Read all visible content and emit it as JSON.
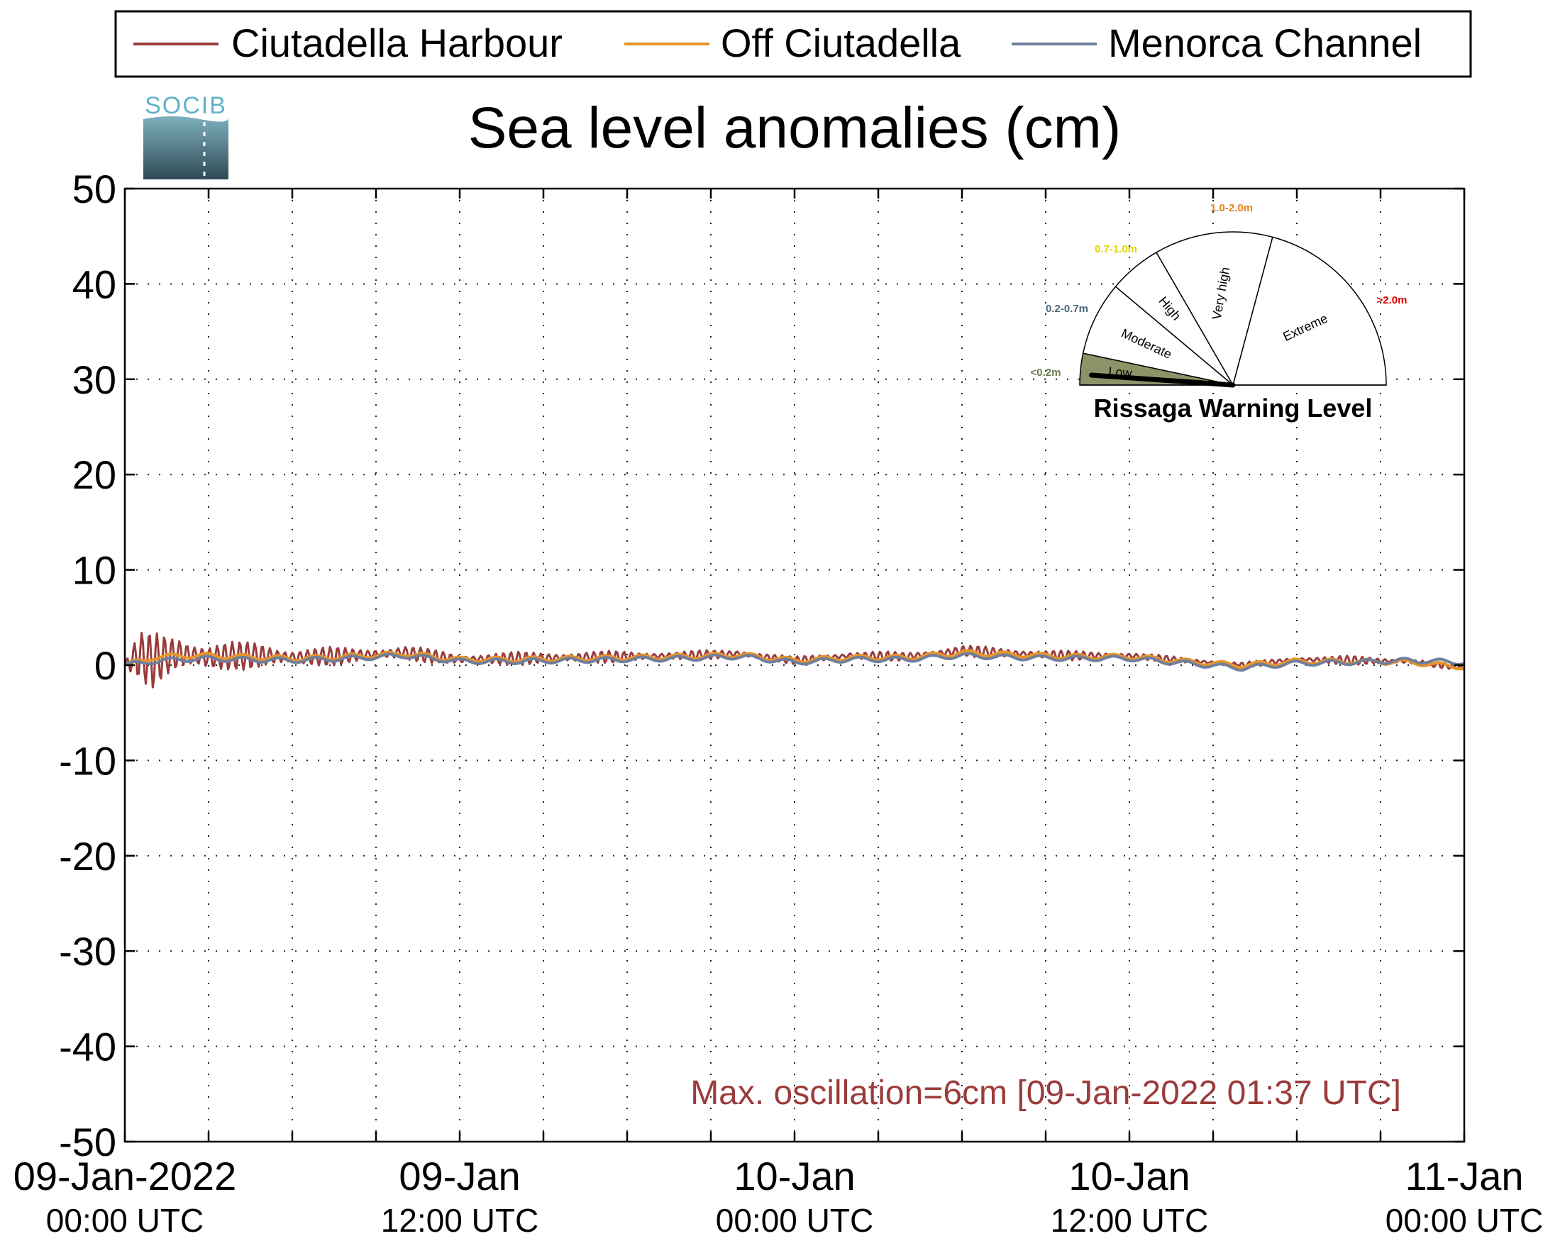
{
  "chart_data": {
    "type": "line",
    "title": "Sea level anomalies (cm)",
    "logo_text": "SOCIB",
    "ylim": [
      -50,
      50
    ],
    "yticks": [
      "50",
      "40",
      "30",
      "20",
      "10",
      "0",
      "-10",
      "-20",
      "-30",
      "-40",
      "-50"
    ],
    "xlim_hours": [
      0,
      48
    ],
    "xtick_labels": [
      {
        "line1": "09-Jan-2022",
        "line2": "00:00 UTC"
      },
      {
        "line1": "09-Jan",
        "line2": "12:00 UTC"
      },
      {
        "line1": "10-Jan",
        "line2": "00:00 UTC"
      },
      {
        "line1": "10-Jan",
        "line2": "12:00 UTC"
      },
      {
        "line1": "11-Jan",
        "line2": "00:00 UTC"
      }
    ],
    "grid": true,
    "legend_position": "top",
    "series": [
      {
        "name": "Ciutadella Harbour",
        "color": "#9b3b3b",
        "hours": [
          0,
          0.5,
          1,
          1.5,
          2,
          3,
          4,
          5,
          6,
          8,
          10,
          12,
          14,
          16,
          18,
          20,
          22,
          24,
          26,
          28,
          30,
          32,
          34,
          36,
          38,
          40,
          42,
          44,
          46,
          48
        ],
        "values": [
          0,
          1.0,
          0.5,
          1.0,
          1.2,
          0.8,
          1.0,
          1.0,
          0.8,
          1.0,
          1.3,
          0.6,
          0.7,
          0.8,
          0.9,
          1.0,
          1.2,
          0.5,
          1.0,
          0.9,
          1.5,
          1.2,
          1.0,
          1.0,
          0.5,
          0.0,
          0.6,
          0.5,
          0.4,
          -0.3
        ],
        "amplitude_cm": [
          0.5,
          2.5,
          3.0,
          2.5,
          2.5,
          1.8,
          1.5,
          1.5,
          1.2,
          0.9,
          0.8,
          0.7,
          0.7,
          0.7,
          0.6,
          0.5,
          0.5,
          0.4,
          0.5,
          0.5,
          0.6,
          0.6,
          0.5,
          0.4,
          0.3,
          0.3,
          0.3,
          0.5,
          0.3,
          0.3
        ]
      },
      {
        "name": "Off Ciutadella",
        "color": "#e8952a",
        "hours": [
          0,
          1,
          2,
          3,
          4,
          6,
          8,
          10,
          12,
          14,
          16,
          18,
          20,
          22,
          24,
          26,
          28,
          30,
          32,
          34,
          36,
          38,
          40,
          42,
          44,
          46,
          48
        ],
        "values": [
          0,
          0.8,
          1.0,
          1.0,
          0.9,
          0.7,
          0.9,
          1.2,
          0.6,
          0.6,
          0.7,
          0.8,
          0.9,
          1.1,
          0.5,
          0.8,
          0.8,
          1.3,
          1.1,
          0.9,
          0.9,
          0.4,
          0.0,
          0.4,
          0.4,
          0.3,
          -0.2
        ]
      },
      {
        "name": "Menorca Channel",
        "color": "#6f7f9e",
        "hours": [
          0,
          1,
          2,
          3,
          4,
          6,
          8,
          10,
          12,
          14,
          16,
          18,
          20,
          22,
          24,
          26,
          28,
          30,
          32,
          34,
          36,
          38,
          40,
          42,
          44,
          46,
          48
        ],
        "values": [
          0,
          0.4,
          0.6,
          0.7,
          0.6,
          0.5,
          0.7,
          1.0,
          0.4,
          0.4,
          0.5,
          0.6,
          0.7,
          0.9,
          0.3,
          0.6,
          0.6,
          1.0,
          0.8,
          0.7,
          0.7,
          0.2,
          -0.3,
          0.2,
          0.3,
          0.5,
          0.3
        ]
      }
    ],
    "annotation": "Max. oscillation=6cm [09-Jan-2022 01:37 UTC]",
    "annotation_color": "#9b3b3b",
    "gauge": {
      "title": "Rissaga Warning Level",
      "needle_level": "Low",
      "sectors": [
        {
          "label": "Low",
          "range": "<0.2m",
          "range_color": "#6b7a4a",
          "fill": "#8a9468"
        },
        {
          "label": "Moderate",
          "range": "0.2-0.7m",
          "range_color": "#4a6878",
          "fill": "#ffffff"
        },
        {
          "label": "High",
          "range": "0.7-1.0m",
          "range_color": "#e6d200",
          "fill": "#ffffff"
        },
        {
          "label": "Very high",
          "range": "1.0-2.0m",
          "range_color": "#e8801a",
          "fill": "#ffffff"
        },
        {
          "label": "Extreme",
          "range": ">2.0m",
          "range_color": "#e00000",
          "fill": "#ffffff"
        }
      ]
    }
  }
}
